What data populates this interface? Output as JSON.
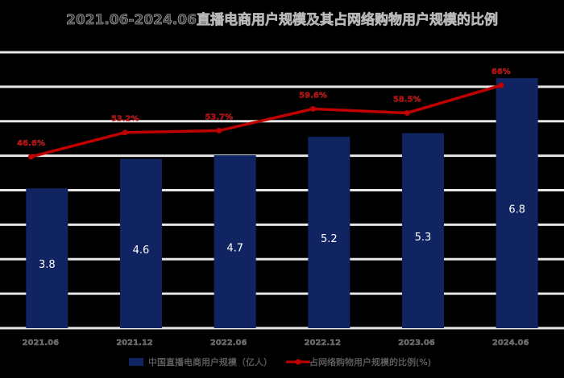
{
  "chart_data": {
    "type": "bar",
    "title": "2021.06-2024.06直播电商用户规模及其占网络购物用户规模的比例",
    "categories": [
      "2021.06",
      "2021.12",
      "2022.06",
      "2022.12",
      "2023.06",
      "2024.06"
    ],
    "series": [
      {
        "name": "中国直播电商用户规模（亿人）",
        "type": "bar",
        "color": "#0f2461",
        "values": [
          3.8,
          4.6,
          4.7,
          5.2,
          5.3,
          6.8
        ],
        "labels": [
          "3.8",
          "4.6",
          "4.7",
          "5.2",
          "5.3",
          "6.8"
        ]
      },
      {
        "name": "占网络购物用户规模的比例(%)",
        "type": "line",
        "color": "#c00000",
        "values": [
          46.6,
          53.2,
          53.7,
          59.6,
          58.5,
          66.0
        ],
        "labels": [
          "46.6%",
          "53.2%",
          "53.7%",
          "59.6%",
          "58.5%",
          "66%"
        ]
      }
    ],
    "ylim": [
      0,
      7.5
    ],
    "y2lim": [
      0,
      75
    ],
    "grid": true,
    "legend": "bottom"
  }
}
